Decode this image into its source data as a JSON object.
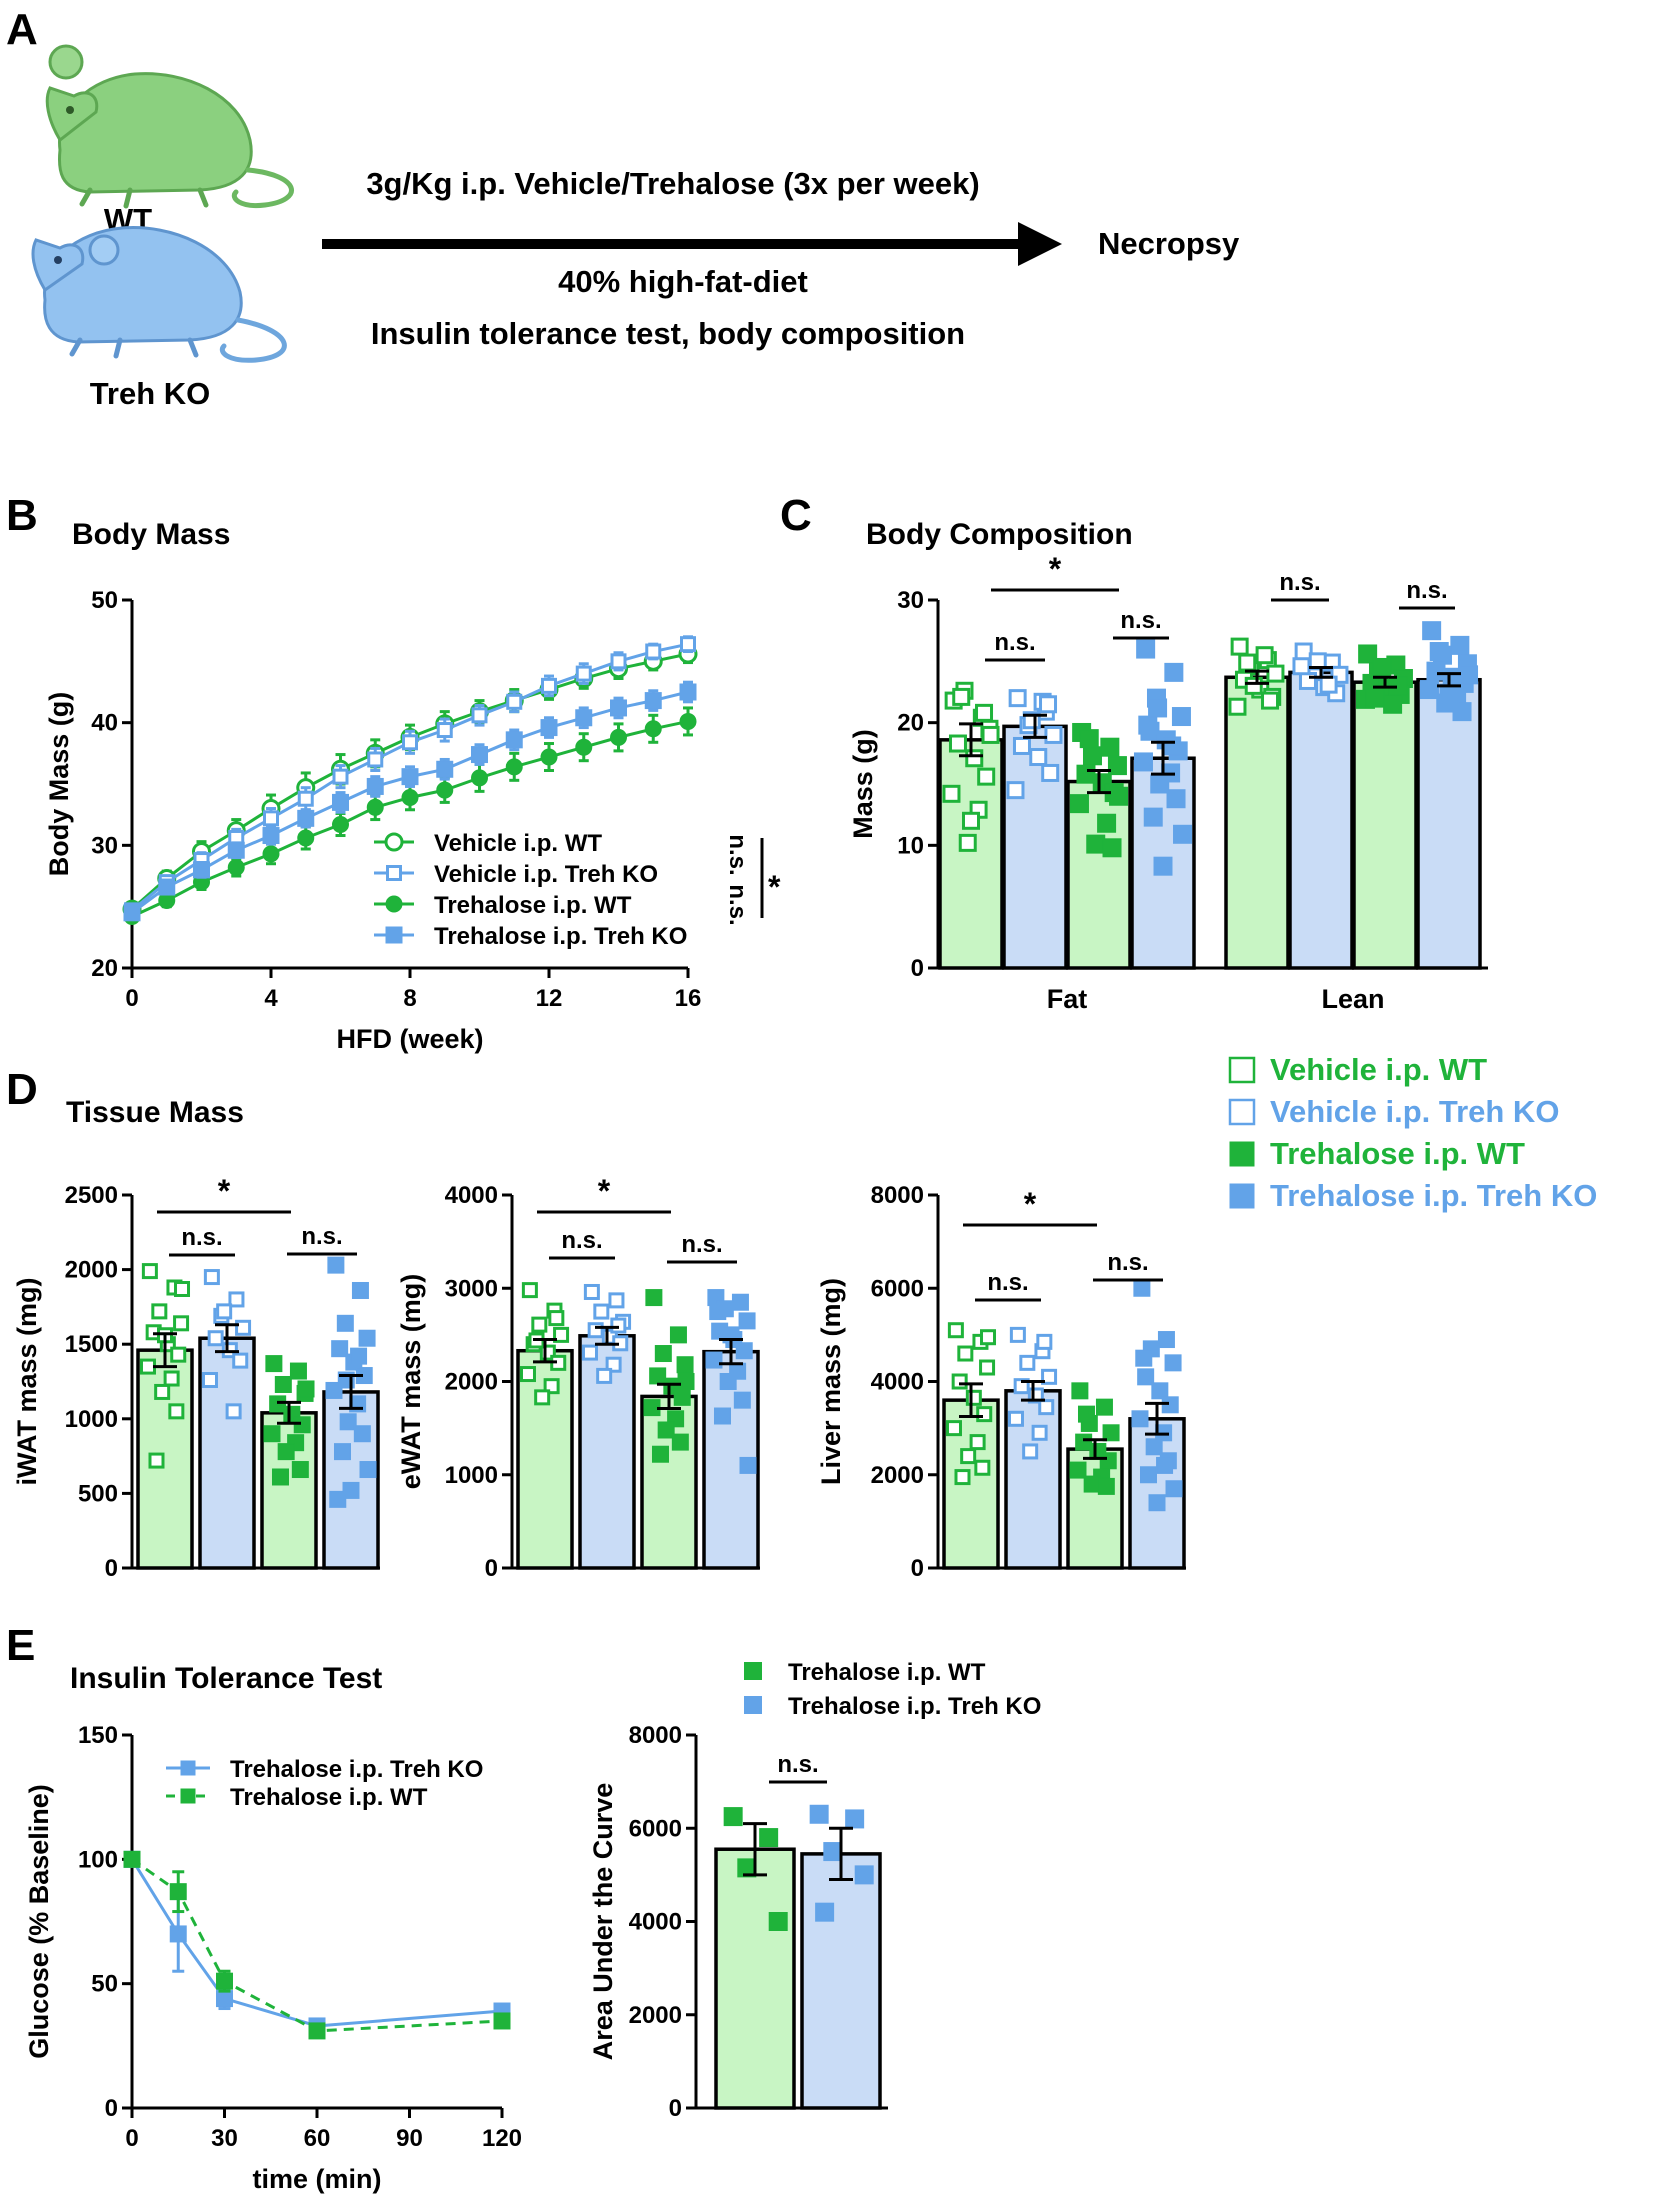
{
  "colors": {
    "wt": "#1fb33a",
    "ko": "#62a3e8",
    "wt_fill": "#c8f5c4",
    "ko_fill": "#c9dcf6",
    "wt_dark": "#0fa82a",
    "ko_dark": "#5b9ee6"
  },
  "panel_a": {
    "label": "A",
    "wt_label": "WT",
    "ko_label": "Treh KO",
    "treatment": "3g/Kg i.p. Vehicle/Trehalose (3x per week)",
    "endpoint": "Necropsy",
    "diet": "40% high-fat-diet",
    "tests": "Insulin tolerance test, body composition",
    "wt_icon": "green-mouse-icon",
    "ko_icon": "blue-mouse-icon"
  },
  "legend_d": {
    "items": [
      {
        "label": "Vehicle i.p. WT",
        "color": "wt",
        "filled": false
      },
      {
        "label": "Vehicle i.p. Treh KO",
        "color": "ko",
        "filled": false
      },
      {
        "label": "Trehalose i.p. WT",
        "color": "wt",
        "filled": true
      },
      {
        "label": "Trehalose i.p. Treh KO",
        "color": "ko",
        "filled": true
      }
    ]
  },
  "chart_data": [
    {
      "id": "body_mass",
      "panel_label": "B",
      "type": "line",
      "title": "Body Mass",
      "xlabel": "HFD (week)",
      "ylabel": "Body Mass (g)",
      "xlim": [
        0,
        16
      ],
      "ylim": [
        20,
        50
      ],
      "xticks": [
        0,
        4,
        8,
        12,
        16
      ],
      "yticks": [
        20,
        30,
        40,
        50
      ],
      "x": [
        0,
        1,
        2,
        3,
        4,
        5,
        6,
        7,
        8,
        9,
        10,
        11,
        12,
        13,
        14,
        15,
        16
      ],
      "series": [
        {
          "name": "Vehicle i.p. WT",
          "color": "wt",
          "marker": "circle",
          "filled": false,
          "values": [
            24.8,
            27.3,
            29.5,
            31.2,
            33.0,
            34.7,
            36.2,
            37.5,
            38.8,
            39.9,
            40.9,
            41.8,
            42.7,
            43.6,
            44.4,
            45.0,
            45.6
          ],
          "err": [
            0.5,
            0.6,
            0.8,
            0.9,
            1.1,
            1.2,
            1.2,
            1.1,
            1.0,
            1.0,
            0.9,
            0.9,
            0.8,
            0.8,
            0.8,
            0.7,
            0.7
          ]
        },
        {
          "name": "Vehicle i.p. Treh KO",
          "color": "ko",
          "marker": "square",
          "filled": false,
          "values": [
            24.7,
            27.0,
            28.8,
            30.6,
            32.2,
            33.8,
            35.6,
            37.0,
            38.4,
            39.4,
            40.6,
            41.7,
            43.0,
            44.0,
            45.0,
            45.8,
            46.4
          ],
          "err": [
            0.4,
            0.5,
            0.6,
            0.7,
            0.8,
            0.9,
            0.9,
            0.9,
            0.9,
            0.9,
            0.8,
            0.8,
            0.8,
            0.8,
            0.7,
            0.6,
            0.6
          ]
        },
        {
          "name": "Trehalose i.p. WT",
          "color": "wt",
          "marker": "circle",
          "filled": true,
          "values": [
            24.2,
            25.5,
            27.0,
            28.2,
            29.3,
            30.6,
            31.7,
            33.1,
            33.9,
            34.5,
            35.5,
            36.4,
            37.2,
            38.0,
            38.8,
            39.5,
            40.1
          ],
          "err": [
            0.4,
            0.5,
            0.6,
            0.7,
            0.8,
            0.9,
            0.9,
            1.0,
            1.0,
            1.0,
            1.1,
            1.1,
            1.1,
            1.1,
            1.1,
            1.1,
            1.1
          ]
        },
        {
          "name": "Trehalose i.p. Treh KO",
          "color": "ko",
          "marker": "square",
          "filled": true,
          "values": [
            24.5,
            26.6,
            28.0,
            29.6,
            30.8,
            32.2,
            33.5,
            34.8,
            35.6,
            36.2,
            37.4,
            38.6,
            39.6,
            40.4,
            41.2,
            41.8,
            42.5
          ],
          "err": [
            0.4,
            0.5,
            0.6,
            0.6,
            0.7,
            0.7,
            0.8,
            0.8,
            0.8,
            0.8,
            0.8,
            0.8,
            0.8,
            0.8,
            0.8,
            0.8,
            0.8
          ]
        }
      ],
      "stat_labels": [
        "n.s.",
        "n.s.",
        "*"
      ]
    },
    {
      "id": "body_composition",
      "panel_label": "C",
      "type": "bar",
      "title": "Body Composition",
      "ylabel": "Mass (g)",
      "ylim": [
        0,
        30
      ],
      "yticks": [
        0,
        10,
        20,
        30
      ],
      "groups": [
        "Fat",
        "Lean"
      ],
      "series": [
        {
          "name": "Vehicle i.p. WT",
          "color": "wt",
          "filled": false,
          "values": [
            18.6,
            23.7
          ],
          "err": [
            1.3,
            0.5
          ],
          "points": [
            [
              21.8,
              20.4,
              22.6,
              19.5,
              18.3,
              17.1,
              15.6,
              14.2,
              12.9,
              10.2,
              20.8,
              22.1,
              19.0,
              12.0
            ],
            [
              26.2,
              25.1,
              24.6,
              24.0,
              23.5,
              22.7,
              22.1,
              21.3,
              25.5,
              23.0,
              21.8,
              24.9
            ]
          ]
        },
        {
          "name": "Vehicle i.p. Treh KO",
          "color": "ko",
          "filled": false,
          "values": [
            19.7,
            24.1
          ],
          "err": [
            0.9,
            0.4
          ],
          "points": [
            [
              22.0,
              20.9,
              19.8,
              19.0,
              18.1,
              17.2,
              15.9,
              14.5,
              21.7,
              20.2,
              21.5
            ],
            [
              25.8,
              24.9,
              24.3,
              23.9,
              23.4,
              22.9,
              22.4,
              24.6,
              23.1,
              25.0
            ]
          ]
        },
        {
          "name": "Trehalose i.p. WT",
          "color": "wt",
          "filled": true,
          "values": [
            15.2,
            23.3
          ],
          "err": [
            0.9,
            0.4
          ],
          "points": [
            [
              19.2,
              18.0,
              17.3,
              16.5,
              15.8,
              15.1,
              14.3,
              13.4,
              11.8,
              10.1,
              9.8,
              18.7,
              14.0
            ],
            [
              25.6,
              24.7,
              24.1,
              23.6,
              23.2,
              22.8,
              22.3,
              21.9,
              21.5,
              24.5,
              23.0,
              22.0
            ]
          ]
        },
        {
          "name": "Trehalose i.p. Treh KO",
          "color": "ko",
          "filled": true,
          "values": [
            17.1,
            23.5
          ],
          "err": [
            1.3,
            0.5
          ],
          "points": [
            [
              26.0,
              24.1,
              22.0,
              20.5,
              19.3,
              18.6,
              17.7,
              16.8,
              15.9,
              15.0,
              13.8,
              12.3,
              10.9,
              8.3,
              19.8,
              18.1,
              21.2
            ],
            [
              27.5,
              26.3,
              25.5,
              24.8,
              24.2,
              23.7,
              23.2,
              22.7,
              22.2,
              21.6,
              20.9,
              25.8,
              23.9,
              22.4
            ]
          ]
        }
      ],
      "stat_labels": [
        "*",
        "n.s.",
        "n.s.",
        "n.s.",
        "n.s."
      ]
    },
    {
      "id": "iwat",
      "panel_label": "D",
      "panel_title": "Tissue Mass",
      "type": "bar",
      "ylabel": "iWAT mass (mg)",
      "ylim": [
        0,
        2500
      ],
      "yticks": [
        0,
        500,
        1000,
        1500,
        2000,
        2500
      ],
      "series": [
        {
          "name": "Vehicle i.p. WT",
          "color": "wt",
          "filled": false,
          "value": 1460,
          "err": 110,
          "points": [
            1990,
            1880,
            1720,
            1640,
            1580,
            1500,
            1430,
            1350,
            1270,
            1180,
            1050,
            720,
            1870,
            1560
          ]
        },
        {
          "name": "Vehicle i.p. Treh KO",
          "color": "ko",
          "filled": false,
          "value": 1540,
          "err": 90,
          "points": [
            1950,
            1800,
            1690,
            1610,
            1540,
            1460,
            1390,
            1260,
            1050,
            1720
          ]
        },
        {
          "name": "Trehalose i.p. WT",
          "color": "wt",
          "filled": true,
          "value": 1040,
          "err": 70,
          "points": [
            1370,
            1320,
            1230,
            1170,
            1100,
            1030,
            960,
            900,
            840,
            780,
            660,
            610,
            1200
          ]
        },
        {
          "name": "Trehalose i.p. Treh KO",
          "color": "ko",
          "filled": true,
          "value": 1180,
          "err": 110,
          "points": [
            2030,
            1860,
            1640,
            1540,
            1470,
            1380,
            1290,
            1190,
            1100,
            980,
            900,
            780,
            660,
            520,
            460,
            1420,
            1260
          ]
        }
      ],
      "stat_labels": [
        "*",
        "n.s.",
        "n.s."
      ]
    },
    {
      "id": "ewat",
      "type": "bar",
      "ylabel": "eWAT mass (mg)",
      "ylim": [
        0,
        4000
      ],
      "yticks": [
        0,
        1000,
        2000,
        3000,
        4000
      ],
      "series": [
        {
          "name": "Vehicle i.p. WT",
          "color": "wt",
          "filled": false,
          "value": 2330,
          "err": 120,
          "points": [
            2980,
            2760,
            2610,
            2500,
            2400,
            2310,
            2200,
            2080,
            1950,
            1830,
            2680,
            2440
          ]
        },
        {
          "name": "Vehicle i.p. Treh KO",
          "color": "ko",
          "filled": false,
          "value": 2490,
          "err": 90,
          "points": [
            2960,
            2870,
            2750,
            2640,
            2550,
            2480,
            2410,
            2310,
            2180,
            2060,
            2600
          ]
        },
        {
          "name": "Trehalose i.p. WT",
          "color": "wt",
          "filled": true,
          "value": 1840,
          "err": 130,
          "points": [
            2900,
            2500,
            2300,
            2180,
            2060,
            1950,
            1830,
            1720,
            1600,
            1480,
            1350,
            1220,
            2000
          ]
        },
        {
          "name": "Trehalose i.p. Treh KO",
          "color": "ko",
          "filled": true,
          "value": 2320,
          "err": 130,
          "points": [
            2900,
            2850,
            2780,
            2650,
            2540,
            2450,
            2330,
            2230,
            2110,
            2000,
            1800,
            1630,
            1100,
            2500,
            2750
          ]
        }
      ],
      "stat_labels": [
        "*",
        "n.s.",
        "n.s."
      ]
    },
    {
      "id": "liver",
      "type": "bar",
      "ylabel": "Liver mass (mg)",
      "ylim": [
        0,
        8000
      ],
      "yticks": [
        0,
        2000,
        4000,
        6000,
        8000
      ],
      "series": [
        {
          "name": "Vehicle i.p. WT",
          "color": "wt",
          "filled": false,
          "value": 3600,
          "err": 350,
          "points": [
            5100,
            4850,
            4600,
            4300,
            4000,
            3650,
            3300,
            3000,
            2700,
            2400,
            2150,
            1950,
            4950
          ]
        },
        {
          "name": "Vehicle i.p. Treh KO",
          "color": "ko",
          "filled": false,
          "value": 3800,
          "err": 200,
          "points": [
            5000,
            4650,
            4400,
            4100,
            3900,
            3700,
            3450,
            3200,
            2900,
            2500,
            4850
          ]
        },
        {
          "name": "Trehalose i.p. WT",
          "color": "wt",
          "filled": true,
          "value": 2550,
          "err": 200,
          "points": [
            3800,
            3450,
            3100,
            2900,
            2700,
            2500,
            2300,
            2100,
            1950,
            1800,
            1750,
            3300
          ]
        },
        {
          "name": "Trehalose i.p. Treh KO",
          "color": "ko",
          "filled": true,
          "value": 3200,
          "err": 330,
          "points": [
            6000,
            4900,
            4700,
            4400,
            4100,
            3800,
            3500,
            3200,
            2900,
            2600,
            2300,
            2000,
            1700,
            1400,
            4500,
            2200
          ]
        }
      ],
      "stat_labels": [
        "*",
        "n.s.",
        "n.s."
      ]
    },
    {
      "id": "itt",
      "panel_label": "E",
      "type": "line",
      "title": "Insulin Tolerance Test",
      "xlabel": "time (min)",
      "ylabel": "Glucose (% Baseline)",
      "xlim": [
        0,
        120
      ],
      "ylim": [
        0,
        150
      ],
      "xticks": [
        0,
        30,
        60,
        90,
        120
      ],
      "yticks": [
        0,
        50,
        100,
        150
      ],
      "x": [
        0,
        15,
        30,
        60,
        120
      ],
      "series": [
        {
          "name": "Trehalose i.p. Treh KO",
          "color": "ko",
          "marker": "square",
          "dash": false,
          "values": [
            100,
            70,
            44,
            33,
            39
          ],
          "err": [
            0,
            15,
            4,
            2,
            2
          ]
        },
        {
          "name": "Trehalose i.p. WT",
          "color": "wt",
          "marker": "square",
          "dash": true,
          "values": [
            100,
            87,
            51,
            31,
            35
          ],
          "err": [
            0,
            8,
            4,
            2,
            2
          ]
        }
      ]
    },
    {
      "id": "auc",
      "type": "bar",
      "ylabel": "Area Under the Curve",
      "ylim": [
        0,
        8000
      ],
      "yticks": [
        0,
        2000,
        4000,
        6000,
        8000
      ],
      "series": [
        {
          "name": "Trehalose i.p. WT",
          "color": "wt",
          "filled": true,
          "value": 5550,
          "err": 550,
          "points": [
            6250,
            5800,
            5150,
            4000
          ]
        },
        {
          "name": "Trehalose i.p. Treh KO",
          "color": "ko",
          "filled": true,
          "value": 5450,
          "err": 550,
          "points": [
            6300,
            6200,
            5500,
            5000,
            4200
          ]
        }
      ],
      "stat_labels": [
        "n.s."
      ]
    }
  ]
}
